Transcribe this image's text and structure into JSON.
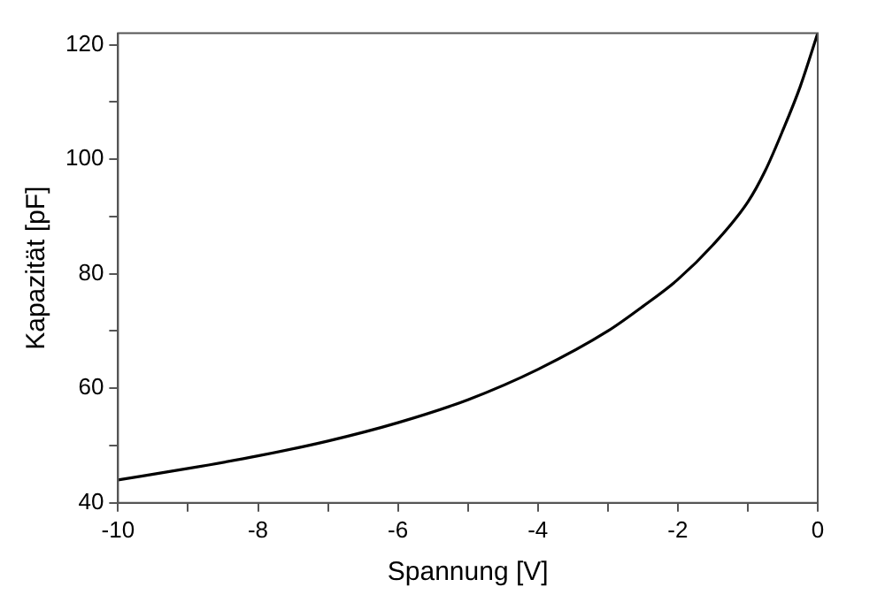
{
  "chart_data": {
    "type": "line",
    "xlabel": "Spannung [V]",
    "ylabel": "Kapazität [pF]",
    "xlim": [
      -10,
      0
    ],
    "ylim": [
      40,
      122
    ],
    "xticks": [
      -10,
      {
        "value": -9,
        "label": null
      },
      -8,
      {
        "value": -7,
        "label": null
      },
      -6,
      {
        "value": -5,
        "label": null
      },
      -4,
      {
        "value": -3,
        "label": null
      },
      -2,
      {
        "value": -1,
        "label": null
      },
      0
    ],
    "yticks": [
      40,
      {
        "value": 50,
        "label": null
      },
      60,
      {
        "value": 70,
        "label": null
      },
      80,
      {
        "value": 90,
        "label": null
      },
      100,
      {
        "value": 110,
        "label": null
      },
      120
    ],
    "grid": false,
    "legend": false,
    "marker": "none",
    "line_style": "solid",
    "series": [
      {
        "color": "#000000",
        "x": [
          -10,
          -9,
          -8,
          -7,
          -6,
          -5,
          -4,
          -3,
          -2.5,
          -2,
          -1.5,
          -1,
          -0.75,
          -0.5,
          -0.25,
          0
        ],
        "values": [
          44,
          46,
          48.2,
          50.8,
          54,
          58,
          63.3,
          70,
          74.3,
          79,
          85,
          92.5,
          98,
          105,
          112.7,
          122
        ]
      }
    ]
  }
}
